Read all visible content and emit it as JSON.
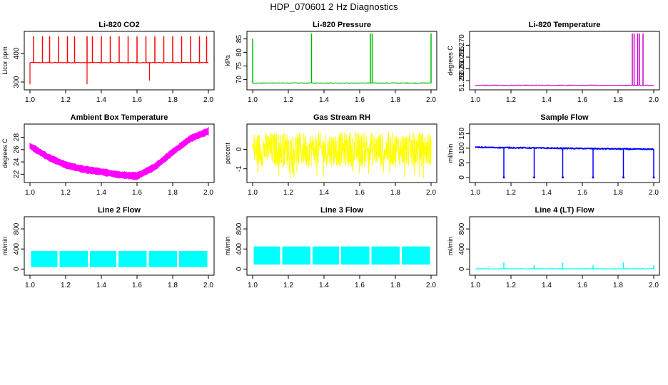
{
  "figure_title": "HDP_070601 2 Hz Diagnostics",
  "colors": {
    "co2": "#ff0000",
    "pressure": "#00bb00",
    "temperature": "#cc00cc",
    "ambient": "#ff00ff",
    "rh": "#ffff00",
    "sample_flow": "#0000ff",
    "line_flow": "#00ffff"
  },
  "chart_data": [
    {
      "type": "line",
      "title": "Li-820 CO2",
      "ylabel": "Licor ppm",
      "xlim": [
        1.0,
        2.0
      ],
      "ylim": [
        280,
        470
      ],
      "xticks": [
        "1.0",
        "1.2",
        "1.4",
        "1.6",
        "1.8",
        "2.0"
      ],
      "yticks": [
        "300",
        "400"
      ],
      "color": "#ff0000",
      "baseline": 368,
      "spikes_up": [
        [
          1.02,
          460
        ],
        [
          1.07,
          460
        ],
        [
          1.11,
          460
        ],
        [
          1.16,
          460
        ],
        [
          1.21,
          460
        ],
        [
          1.25,
          460
        ],
        [
          1.32,
          460
        ],
        [
          1.35,
          460
        ],
        [
          1.4,
          460
        ],
        [
          1.45,
          460
        ],
        [
          1.5,
          460
        ],
        [
          1.55,
          460
        ],
        [
          1.6,
          460
        ],
        [
          1.65,
          460
        ],
        [
          1.7,
          460
        ],
        [
          1.75,
          460
        ],
        [
          1.8,
          460
        ],
        [
          1.85,
          460
        ],
        [
          1.9,
          460
        ],
        [
          1.95,
          460
        ],
        [
          1.99,
          460
        ]
      ],
      "spikes_down": [
        [
          1.0,
          292
        ],
        [
          1.32,
          292
        ],
        [
          1.67,
          305
        ]
      ]
    },
    {
      "type": "line",
      "title": "Li-820 Pressure",
      "ylabel": "kPa",
      "xlim": [
        1.0,
        2.0
      ],
      "ylim": [
        67,
        87
      ],
      "xticks": [
        "1.0",
        "1.2",
        "1.4",
        "1.6",
        "1.8",
        "2.0"
      ],
      "yticks": [
        "70",
        "75",
        "80",
        "85"
      ],
      "color": "#00bb00",
      "baseline": 68.7,
      "spikes_up": [
        [
          1.0,
          85
        ],
        [
          1.33,
          87
        ],
        [
          1.66,
          87
        ],
        [
          1.67,
          87
        ],
        [
          2.0,
          87
        ]
      ]
    },
    {
      "type": "line",
      "title": "Li-820 Temperature",
      "ylabel": "degrees C",
      "xlim": [
        1.0,
        2.0
      ],
      "ylim": [
        51.252,
        51.275
      ],
      "xticks": [
        "1.0",
        "1.2",
        "1.4",
        "1.6",
        "1.8",
        "2.0"
      ],
      "yticks": [
        "51.255",
        "51.260",
        "51.265",
        "51.270"
      ],
      "color": "#cc00cc",
      "baseline": 51.253,
      "spikes_up": [
        [
          1.88,
          51.275
        ],
        [
          1.89,
          51.275
        ],
        [
          1.91,
          51.275
        ],
        [
          1.92,
          51.275
        ],
        [
          1.94,
          51.275
        ]
      ]
    },
    {
      "type": "line",
      "title": "Ambient Box Temperature",
      "ylabel": "degrees C",
      "xlim": [
        1.0,
        2.0
      ],
      "ylim": [
        21.0,
        29.8
      ],
      "xticks": [
        "1.0",
        "1.2",
        "1.4",
        "1.6",
        "1.8",
        "2.0"
      ],
      "yticks": [
        "22",
        "24",
        "26",
        "28"
      ],
      "color": "#ff00ff",
      "x": [
        1.0,
        1.1,
        1.2,
        1.3,
        1.4,
        1.5,
        1.6,
        1.7,
        1.8,
        1.9,
        2.0
      ],
      "y": [
        26.6,
        24.8,
        23.5,
        22.8,
        22.4,
        21.9,
        21.7,
        23.2,
        25.6,
        27.8,
        29.0
      ],
      "band_width": 1.2
    },
    {
      "type": "line",
      "title": "Gas Stream RH",
      "ylabel": "percent",
      "xlim": [
        1.0,
        2.0
      ],
      "ylim": [
        -1.6,
        1.2
      ],
      "xticks": [
        "1.0",
        "1.2",
        "1.4",
        "1.6",
        "1.8",
        "2.0"
      ],
      "yticks": [
        "-1",
        "0"
      ],
      "color": "#ffff00",
      "noise_center": 0.0,
      "noise_amplitude": 0.9,
      "noise_min": -1.5
    },
    {
      "type": "line",
      "title": "Sample Flow",
      "ylabel": "ml/min",
      "xlim": [
        1.0,
        2.0
      ],
      "ylim": [
        -10,
        175
      ],
      "xticks": [
        "1.0",
        "1.2",
        "1.4",
        "1.6",
        "1.8",
        "2.0"
      ],
      "yticks": [
        "0",
        "50",
        "100",
        "150"
      ],
      "color": "#0000ff",
      "baseline_start": 103,
      "baseline_end": 96,
      "dips": [
        [
          1.16,
          0
        ],
        [
          1.33,
          0
        ],
        [
          1.49,
          0
        ],
        [
          1.66,
          0
        ],
        [
          1.83,
          0
        ],
        [
          2.0,
          0
        ]
      ]
    },
    {
      "type": "line",
      "title": "Line 2 Flow",
      "ylabel": "ml/min",
      "xlim": [
        1.0,
        2.0
      ],
      "ylim": [
        -80,
        1000
      ],
      "xticks": [
        "1.0",
        "1.2",
        "1.4",
        "1.6",
        "1.8",
        "2.0"
      ],
      "yticks": [
        "0",
        "400",
        "800"
      ],
      "color": "#00ffff",
      "band": [
        40,
        360
      ],
      "gaps": [
        1.16,
        1.33,
        1.49,
        1.66,
        1.83
      ]
    },
    {
      "type": "line",
      "title": "Line 3 Flow",
      "ylabel": "ml/min",
      "xlim": [
        1.0,
        2.0
      ],
      "ylim": [
        -80,
        1000
      ],
      "xticks": [
        "1.0",
        "1.2",
        "1.4",
        "1.6",
        "1.8",
        "2.0"
      ],
      "yticks": [
        "0",
        "400",
        "800"
      ],
      "color": "#00ffff",
      "band": [
        90,
        450
      ],
      "gaps": [
        1.16,
        1.33,
        1.49,
        1.66,
        1.83
      ]
    },
    {
      "type": "line",
      "title": "Line 4 (LT) Flow",
      "ylabel": "ml/min",
      "xlim": [
        1.0,
        2.0
      ],
      "ylim": [
        -80,
        1000
      ],
      "xticks": [
        "1.0",
        "1.2",
        "1.4",
        "1.6",
        "1.8",
        "2.0"
      ],
      "yticks": [
        "0",
        "400",
        "800"
      ],
      "color": "#00ffff",
      "baseline": 5,
      "spikes_up": [
        [
          1.16,
          130
        ],
        [
          1.33,
          80
        ],
        [
          1.49,
          130
        ],
        [
          1.66,
          80
        ],
        [
          1.83,
          130
        ],
        [
          2.0,
          80
        ]
      ]
    }
  ]
}
